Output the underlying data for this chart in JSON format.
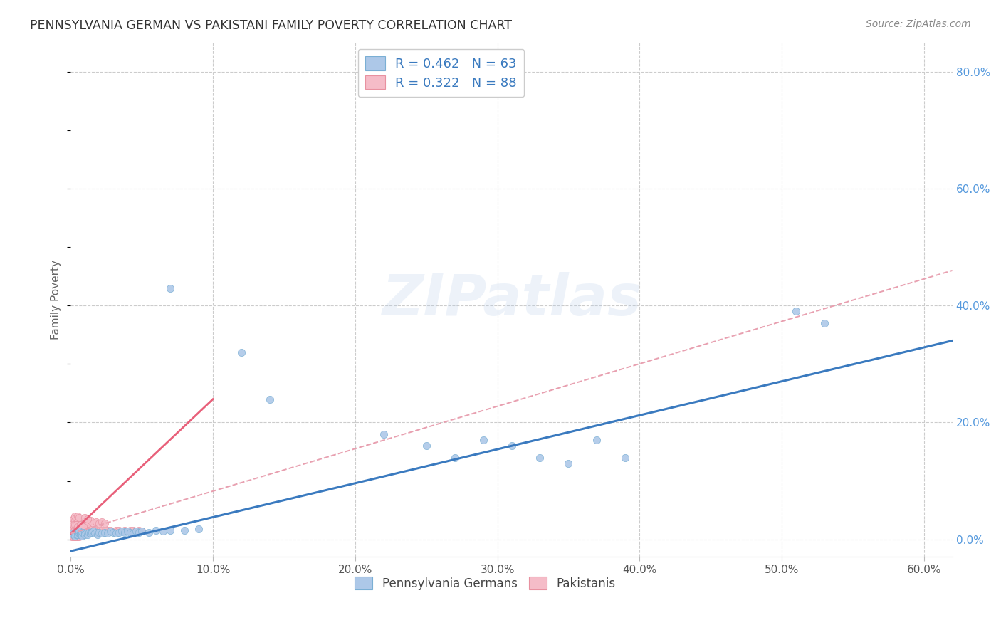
{
  "title": "PENNSYLVANIA GERMAN VS PAKISTANI FAMILY POVERTY CORRELATION CHART",
  "source": "Source: ZipAtlas.com",
  "ylabel": "Family Poverty",
  "watermark": "ZIPatlas",
  "blue_scatter_color": "#adc8e8",
  "pink_scatter_color": "#f5bcc8",
  "blue_edge_color": "#7aafd4",
  "pink_edge_color": "#e891a0",
  "blue_line_color": "#3a7abf",
  "pink_solid_color": "#e8607a",
  "pink_dash_color": "#e8a0b0",
  "background_color": "#ffffff",
  "grid_color": "#cccccc",
  "title_color": "#333333",
  "source_color": "#888888",
  "legend_color": "#3a7abf",
  "legend_N_color": "#22aa44",
  "xlim": [
    0.0,
    0.62
  ],
  "ylim": [
    -0.03,
    0.85
  ],
  "xticks": [
    0.0,
    0.1,
    0.2,
    0.3,
    0.4,
    0.5,
    0.6
  ],
  "yticks_right": [
    0.0,
    0.2,
    0.4,
    0.6,
    0.8
  ],
  "blue_line": {
    "x0": 0.0,
    "x1": 0.62,
    "y0": -0.02,
    "y1": 0.34
  },
  "pink_solid_line": {
    "x0": 0.0,
    "x1": 0.1,
    "y0": 0.01,
    "y1": 0.24
  },
  "pink_dash_line": {
    "x0": 0.0,
    "x1": 0.62,
    "y0": 0.01,
    "y1": 0.46
  },
  "blue_points": [
    [
      0.001,
      0.01
    ],
    [
      0.002,
      0.008
    ],
    [
      0.003,
      0.006
    ],
    [
      0.003,
      0.012
    ],
    [
      0.004,
      0.01
    ],
    [
      0.004,
      0.008
    ],
    [
      0.005,
      0.012
    ],
    [
      0.005,
      0.008
    ],
    [
      0.006,
      0.01
    ],
    [
      0.006,
      0.014
    ],
    [
      0.007,
      0.01
    ],
    [
      0.007,
      0.008
    ],
    [
      0.008,
      0.012
    ],
    [
      0.008,
      0.006
    ],
    [
      0.009,
      0.01
    ],
    [
      0.01,
      0.012
    ],
    [
      0.01,
      0.008
    ],
    [
      0.011,
      0.01
    ],
    [
      0.012,
      0.008
    ],
    [
      0.013,
      0.012
    ],
    [
      0.014,
      0.01
    ],
    [
      0.015,
      0.012
    ],
    [
      0.016,
      0.014
    ],
    [
      0.017,
      0.01
    ],
    [
      0.018,
      0.012
    ],
    [
      0.019,
      0.008
    ],
    [
      0.02,
      0.012
    ],
    [
      0.022,
      0.01
    ],
    [
      0.024,
      0.012
    ],
    [
      0.026,
      0.01
    ],
    [
      0.028,
      0.014
    ],
    [
      0.03,
      0.012
    ],
    [
      0.032,
      0.01
    ],
    [
      0.034,
      0.012
    ],
    [
      0.036,
      0.014
    ],
    [
      0.038,
      0.012
    ],
    [
      0.04,
      0.014
    ],
    [
      0.042,
      0.012
    ],
    [
      0.044,
      0.01
    ],
    [
      0.046,
      0.014
    ],
    [
      0.048,
      0.012
    ],
    [
      0.05,
      0.014
    ],
    [
      0.055,
      0.012
    ],
    [
      0.06,
      0.016
    ],
    [
      0.065,
      0.014
    ],
    [
      0.07,
      0.016
    ],
    [
      0.08,
      0.016
    ],
    [
      0.09,
      0.018
    ],
    [
      0.07,
      0.43
    ],
    [
      0.12,
      0.32
    ],
    [
      0.14,
      0.24
    ],
    [
      0.22,
      0.18
    ],
    [
      0.25,
      0.16
    ],
    [
      0.27,
      0.14
    ],
    [
      0.29,
      0.17
    ],
    [
      0.31,
      0.16
    ],
    [
      0.33,
      0.14
    ],
    [
      0.35,
      0.13
    ],
    [
      0.37,
      0.17
    ],
    [
      0.39,
      0.14
    ],
    [
      0.51,
      0.39
    ],
    [
      0.53,
      0.37
    ]
  ],
  "pink_points": [
    [
      0.001,
      0.005
    ],
    [
      0.001,
      0.01
    ],
    [
      0.001,
      0.015
    ],
    [
      0.002,
      0.005
    ],
    [
      0.002,
      0.01
    ],
    [
      0.002,
      0.015
    ],
    [
      0.002,
      0.02
    ],
    [
      0.003,
      0.005
    ],
    [
      0.003,
      0.01
    ],
    [
      0.003,
      0.015
    ],
    [
      0.003,
      0.02
    ],
    [
      0.004,
      0.005
    ],
    [
      0.004,
      0.01
    ],
    [
      0.004,
      0.015
    ],
    [
      0.004,
      0.02
    ],
    [
      0.005,
      0.005
    ],
    [
      0.005,
      0.01
    ],
    [
      0.005,
      0.015
    ],
    [
      0.005,
      0.02
    ],
    [
      0.006,
      0.005
    ],
    [
      0.006,
      0.01
    ],
    [
      0.006,
      0.015
    ],
    [
      0.006,
      0.02
    ],
    [
      0.007,
      0.008
    ],
    [
      0.007,
      0.012
    ],
    [
      0.007,
      0.018
    ],
    [
      0.008,
      0.008
    ],
    [
      0.008,
      0.014
    ],
    [
      0.008,
      0.02
    ],
    [
      0.009,
      0.01
    ],
    [
      0.009,
      0.015
    ],
    [
      0.01,
      0.01
    ],
    [
      0.01,
      0.015
    ],
    [
      0.01,
      0.02
    ],
    [
      0.011,
      0.01
    ],
    [
      0.011,
      0.015
    ],
    [
      0.012,
      0.012
    ],
    [
      0.012,
      0.018
    ],
    [
      0.013,
      0.012
    ],
    [
      0.013,
      0.018
    ],
    [
      0.014,
      0.014
    ],
    [
      0.015,
      0.014
    ],
    [
      0.016,
      0.014
    ],
    [
      0.018,
      0.016
    ],
    [
      0.02,
      0.014
    ],
    [
      0.022,
      0.016
    ],
    [
      0.024,
      0.014
    ],
    [
      0.026,
      0.016
    ],
    [
      0.028,
      0.016
    ],
    [
      0.03,
      0.014
    ],
    [
      0.032,
      0.016
    ],
    [
      0.034,
      0.016
    ],
    [
      0.036,
      0.014
    ],
    [
      0.038,
      0.016
    ],
    [
      0.04,
      0.014
    ],
    [
      0.042,
      0.016
    ],
    [
      0.044,
      0.016
    ],
    [
      0.046,
      0.014
    ],
    [
      0.048,
      0.016
    ],
    [
      0.05,
      0.014
    ],
    [
      0.002,
      0.035
    ],
    [
      0.003,
      0.033
    ],
    [
      0.004,
      0.03
    ],
    [
      0.005,
      0.032
    ],
    [
      0.006,
      0.03
    ],
    [
      0.007,
      0.032
    ],
    [
      0.008,
      0.03
    ],
    [
      0.009,
      0.028
    ],
    [
      0.01,
      0.03
    ],
    [
      0.011,
      0.032
    ],
    [
      0.012,
      0.028
    ],
    [
      0.014,
      0.032
    ],
    [
      0.016,
      0.028
    ],
    [
      0.018,
      0.03
    ],
    [
      0.02,
      0.028
    ],
    [
      0.022,
      0.03
    ],
    [
      0.024,
      0.028
    ],
    [
      0.003,
      0.04
    ],
    [
      0.004,
      0.038
    ],
    [
      0.005,
      0.04
    ],
    [
      0.006,
      0.038
    ],
    [
      0.002,
      0.025
    ],
    [
      0.003,
      0.025
    ],
    [
      0.004,
      0.025
    ],
    [
      0.005,
      0.022
    ],
    [
      0.007,
      0.025
    ],
    [
      0.009,
      0.022
    ],
    [
      0.01,
      0.038
    ],
    [
      0.012,
      0.035
    ]
  ]
}
